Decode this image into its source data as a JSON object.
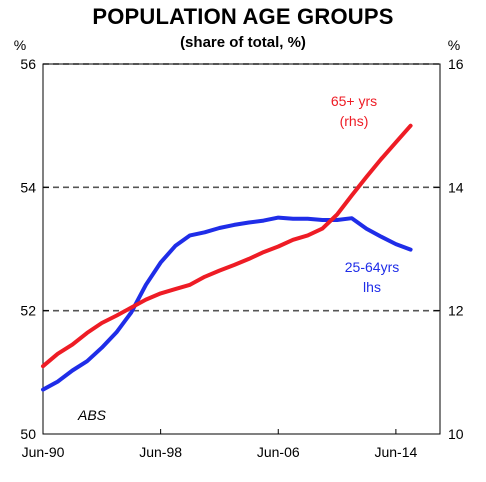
{
  "chart_data": {
    "type": "line",
    "title": "POPULATION AGE GROUPS",
    "subtitle": "(share of total, %)",
    "left_unit": "%",
    "right_unit": "%",
    "source": "ABS",
    "x_tick_labels": [
      "Jun-90",
      "Jun-98",
      "Jun-06",
      "Jun-14"
    ],
    "x_range": [
      1990.5,
      2017.5
    ],
    "left_axis": {
      "ylim": [
        50,
        56
      ],
      "ticks": [
        "50",
        "52",
        "54",
        "56"
      ]
    },
    "right_axis": {
      "ylim": [
        10,
        16
      ],
      "ticks": [
        "10",
        "12",
        "14",
        "16"
      ]
    },
    "grid": "horizontal dashed",
    "series": [
      {
        "name": "25-64yrs lhs",
        "label_lines": [
          "25-64yrs",
          "lhs"
        ],
        "axis": "left",
        "color": "#1f2de8",
        "x": [
          1990.5,
          1991.5,
          1992.5,
          1993.5,
          1994.5,
          1995.5,
          1996.5,
          1997.5,
          1998.5,
          1999.5,
          2000.5,
          2001.5,
          2002.5,
          2003.5,
          2004.5,
          2005.5,
          2006.5,
          2007.5,
          2008.5,
          2009.5,
          2010.5,
          2011.5,
          2012.5,
          2013.5,
          2014.5,
          2015.5
        ],
        "values": [
          50.72,
          50.85,
          51.03,
          51.18,
          51.4,
          51.65,
          51.97,
          52.42,
          52.78,
          53.05,
          53.22,
          53.27,
          53.34,
          53.39,
          53.43,
          53.46,
          53.51,
          53.49,
          53.49,
          53.47,
          53.47,
          53.5,
          53.33,
          53.2,
          53.08,
          52.99
        ]
      },
      {
        "name": "65+ yrs (rhs)",
        "label_lines": [
          "65+ yrs",
          "(rhs)"
        ],
        "axis": "right",
        "color": "#ee1c25",
        "x": [
          1990.5,
          1991.5,
          1992.5,
          1993.5,
          1994.5,
          1995.5,
          1996.5,
          1997.5,
          1998.5,
          1999.5,
          2000.5,
          2001.5,
          2002.5,
          2003.5,
          2004.5,
          2005.5,
          2006.5,
          2007.5,
          2008.5,
          2009.5,
          2010.5,
          2011.5,
          2012.5,
          2013.5,
          2014.5,
          2015.5
        ],
        "values": [
          11.1,
          11.3,
          11.45,
          11.64,
          11.8,
          11.92,
          12.05,
          12.18,
          12.28,
          12.35,
          12.42,
          12.55,
          12.65,
          12.74,
          12.84,
          12.95,
          13.04,
          13.15,
          13.22,
          13.33,
          13.56,
          13.87,
          14.17,
          14.46,
          14.73,
          15.0
        ]
      }
    ]
  }
}
